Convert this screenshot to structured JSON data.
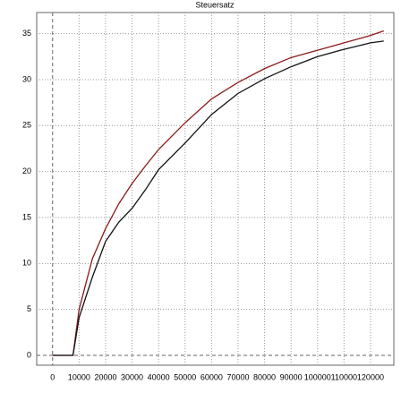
{
  "chart_data": {
    "type": "line",
    "title": "Steuersatz",
    "x": [
      0,
      5000,
      7700,
      10000,
      15000,
      20000,
      25000,
      30000,
      35000,
      40000,
      50000,
      60000,
      70000,
      80000,
      90000,
      100000,
      110000,
      120000,
      125000
    ],
    "series": [
      {
        "color": "#8b1a1a",
        "values": [
          0,
          0,
          0,
          5,
          10.5,
          13.8,
          16.5,
          18.7,
          20.6,
          22.4,
          25.3,
          27.9,
          29.7,
          31.2,
          32.4,
          33.2,
          34.0,
          34.8,
          35.3
        ]
      },
      {
        "color": "#111111",
        "values": [
          0,
          0,
          0,
          4.1,
          8.5,
          12.4,
          14.5,
          16.0,
          18.0,
          20.2,
          23.1,
          26.2,
          28.5,
          30.1,
          31.4,
          32.5,
          33.3,
          34.0,
          34.2
        ]
      }
    ],
    "xlim": [
      -6000,
      128800
    ],
    "ylim": [
      -1.07,
      37.3
    ],
    "xticks": [
      0,
      10000,
      20000,
      30000,
      40000,
      50000,
      60000,
      70000,
      80000,
      90000,
      100000,
      110000,
      120000
    ],
    "yticks": [
      0,
      5,
      10,
      15,
      20,
      25,
      30,
      35
    ],
    "grid": true
  }
}
